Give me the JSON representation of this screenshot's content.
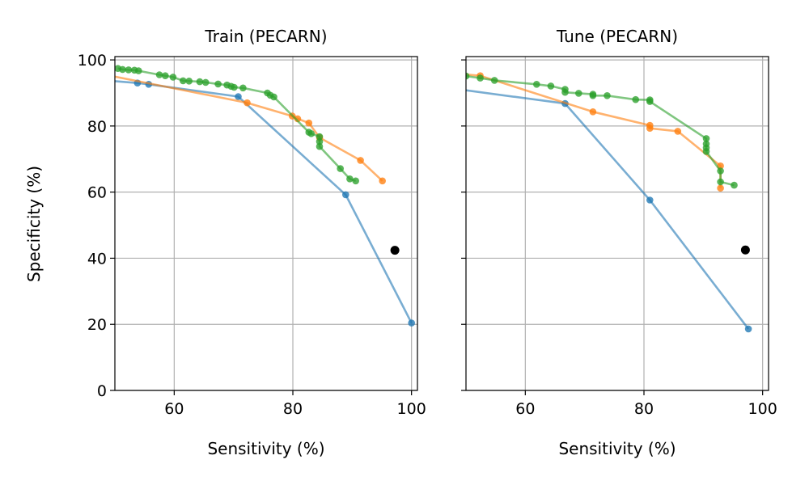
{
  "colors": {
    "blue": "#1f77b4",
    "orange": "#ff7f0e",
    "green": "#2ca02c",
    "reference": "#000000",
    "grid": "#b0b0b0"
  },
  "chart_data": [
    {
      "type": "line",
      "title": "Train (PECARN)",
      "xlabel": "Sensitivity (%)",
      "ylabel": "Specificity (%)",
      "xlim": [
        50,
        101
      ],
      "ylim": [
        0,
        101
      ],
      "xticks": [
        60,
        80,
        100
      ],
      "yticks": [
        0,
        20,
        40,
        60,
        80,
        100
      ],
      "show_ytick_labels": true,
      "grid": true,
      "series": [
        {
          "color": "blue",
          "points": [
            [
              47,
              94
            ],
            [
              53.8,
              93
            ],
            [
              55.7,
              92.6
            ],
            [
              70.8,
              88.9
            ],
            [
              88.9,
              59.2
            ],
            [
              100,
              20.4
            ]
          ]
        },
        {
          "color": "orange",
          "points": [
            [
              47,
              96
            ],
            [
              72.3,
              87
            ],
            [
              79.9,
              83
            ],
            [
              80.8,
              82.2
            ],
            [
              82.7,
              80.9
            ],
            [
              84.5,
              76.5
            ],
            [
              91.4,
              69.6
            ],
            [
              95.1,
              63.4
            ]
          ]
        },
        {
          "color": "green",
          "points": [
            [
              50.5,
              97.4
            ],
            [
              51.3,
              97.1
            ],
            [
              52.3,
              97
            ],
            [
              53.3,
              96.9
            ],
            [
              54,
              96.7
            ],
            [
              57.5,
              95.5
            ],
            [
              58.5,
              95.2
            ],
            [
              59.8,
              94.8
            ],
            [
              61.5,
              93.7
            ],
            [
              62.5,
              93.6
            ],
            [
              64.3,
              93.4
            ],
            [
              65.3,
              93.2
            ],
            [
              67.4,
              92.7
            ],
            [
              68.9,
              92.4
            ],
            [
              69.6,
              92
            ],
            [
              70.1,
              91.7
            ],
            [
              71.6,
              91.5
            ],
            [
              75.7,
              90
            ],
            [
              76.2,
              89.3
            ],
            [
              76.8,
              88.8
            ],
            [
              82.7,
              78.1
            ],
            [
              83.1,
              77.7
            ],
            [
              84.5,
              76.8
            ],
            [
              84.5,
              75.3
            ],
            [
              84.5,
              73.8
            ],
            [
              88,
              67.1
            ],
            [
              89.6,
              64
            ],
            [
              90.6,
              63.4
            ]
          ]
        }
      ],
      "reference_point": [
        97.2,
        42.4
      ]
    },
    {
      "type": "line",
      "title": "Tune (PECARN)",
      "xlabel": "Sensitivity (%)",
      "ylabel": "",
      "xlim": [
        50,
        101
      ],
      "ylim": [
        0,
        101
      ],
      "xticks": [
        60,
        80,
        100
      ],
      "yticks": [
        0,
        20,
        40,
        60,
        80,
        100
      ],
      "show_ytick_labels": false,
      "grid": true,
      "series": [
        {
          "color": "blue",
          "points": [
            [
              47,
              91.5
            ],
            [
              66.7,
              86.8
            ],
            [
              81,
              57.6
            ],
            [
              97.6,
              18.6
            ]
          ]
        },
        {
          "color": "orange",
          "points": [
            [
              47,
              96
            ],
            [
              52.4,
              95.2
            ],
            [
              71.4,
              84.3
            ],
            [
              81,
              80.2
            ],
            [
              81,
              79.3
            ],
            [
              85.7,
              78.4
            ],
            [
              92.9,
              67.9
            ],
            [
              92.9,
              61.2
            ]
          ]
        },
        {
          "color": "green",
          "points": [
            [
              50,
              95.1
            ],
            [
              52.4,
              94.5
            ],
            [
              54.8,
              93.8
            ],
            [
              61.9,
              92.6
            ],
            [
              64.3,
              92.1
            ],
            [
              66.7,
              91.1
            ],
            [
              66.7,
              90.2
            ],
            [
              69,
              89.9
            ],
            [
              71.4,
              89.6
            ],
            [
              71.4,
              89.2
            ],
            [
              73.8,
              89.2
            ],
            [
              78.6,
              88
            ],
            [
              81,
              87.9
            ],
            [
              81,
              87.4
            ],
            [
              90.5,
              76.2
            ],
            [
              90.5,
              74.6
            ],
            [
              90.5,
              73.4
            ],
            [
              90.5,
              72.3
            ],
            [
              92.9,
              66.4
            ],
            [
              92.9,
              63.1
            ],
            [
              95.2,
              62.1
            ]
          ]
        }
      ],
      "reference_point": [
        97.1,
        42.5
      ]
    }
  ]
}
